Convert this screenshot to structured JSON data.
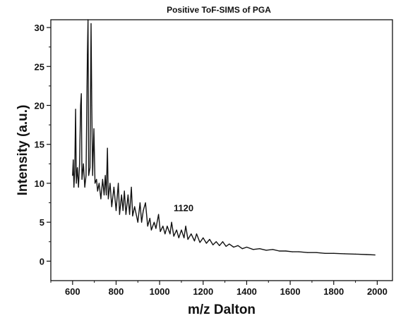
{
  "chart_data": {
    "type": "line",
    "title": "Positive ToF-SIMS of PGA",
    "xlabel": "m/z Dalton",
    "ylabel": "Intensity (a.u.)",
    "xlim": [
      500,
      2070
    ],
    "ylim": [
      -2.5,
      31
    ],
    "xticks": [
      600,
      800,
      1000,
      1200,
      1400,
      1600,
      1800,
      2000
    ],
    "yticks": [
      0,
      5,
      10,
      15,
      20,
      25,
      30
    ],
    "grid": false,
    "series": [
      {
        "points": [
          [
            600,
            11.0
          ],
          [
            603,
            13.0
          ],
          [
            606,
            9.5
          ],
          [
            610,
            11.5
          ],
          [
            614,
            19.5
          ],
          [
            617,
            10.0
          ],
          [
            622,
            12.0
          ],
          [
            627,
            9.5
          ],
          [
            632,
            12.5
          ],
          [
            637,
            20.0
          ],
          [
            640,
            21.5
          ],
          [
            643,
            10.5
          ],
          [
            650,
            12.5
          ],
          [
            656,
            9.5
          ],
          [
            662,
            11.0
          ],
          [
            668,
            26.5
          ],
          [
            671,
            31.0
          ],
          [
            674,
            11.0
          ],
          [
            680,
            12.0
          ],
          [
            685,
            30.5
          ],
          [
            688,
            20.0
          ],
          [
            692,
            11.0
          ],
          [
            698,
            17.0
          ],
          [
            703,
            10.0
          ],
          [
            710,
            10.5
          ],
          [
            715,
            9.0
          ],
          [
            722,
            10.0
          ],
          [
            730,
            8.0
          ],
          [
            738,
            10.5
          ],
          [
            745,
            8.5
          ],
          [
            750,
            11.0
          ],
          [
            755,
            8.5
          ],
          [
            760,
            14.5
          ],
          [
            764,
            8.0
          ],
          [
            772,
            10.0
          ],
          [
            780,
            7.0
          ],
          [
            790,
            9.5
          ],
          [
            800,
            6.5
          ],
          [
            810,
            10.0
          ],
          [
            816,
            6.0
          ],
          [
            825,
            8.5
          ],
          [
            832,
            6.5
          ],
          [
            838,
            9.0
          ],
          [
            845,
            6.0
          ],
          [
            855,
            8.5
          ],
          [
            862,
            6.0
          ],
          [
            870,
            9.5
          ],
          [
            876,
            5.8
          ],
          [
            885,
            7.0
          ],
          [
            900,
            5.0
          ],
          [
            910,
            7.5
          ],
          [
            917,
            5.0
          ],
          [
            925,
            6.5
          ],
          [
            935,
            7.5
          ],
          [
            945,
            4.5
          ],
          [
            955,
            5.5
          ],
          [
            962,
            4.0
          ],
          [
            975,
            5.0
          ],
          [
            983,
            4.2
          ],
          [
            995,
            6.0
          ],
          [
            1003,
            3.8
          ],
          [
            1015,
            4.5
          ],
          [
            1025,
            3.5
          ],
          [
            1035,
            4.5
          ],
          [
            1048,
            3.5
          ],
          [
            1055,
            5.0
          ],
          [
            1065,
            3.2
          ],
          [
            1078,
            4.0
          ],
          [
            1088,
            3.0
          ],
          [
            1100,
            4.0
          ],
          [
            1112,
            3.0
          ],
          [
            1120,
            4.5
          ],
          [
            1130,
            2.8
          ],
          [
            1145,
            3.5
          ],
          [
            1160,
            2.6
          ],
          [
            1170,
            3.5
          ],
          [
            1185,
            2.4
          ],
          [
            1200,
            3.0
          ],
          [
            1215,
            2.3
          ],
          [
            1230,
            2.8
          ],
          [
            1245,
            2.1
          ],
          [
            1260,
            2.5
          ],
          [
            1275,
            2.0
          ],
          [
            1290,
            2.5
          ],
          [
            1305,
            1.9
          ],
          [
            1320,
            2.2
          ],
          [
            1340,
            1.8
          ],
          [
            1360,
            2.0
          ],
          [
            1380,
            1.6
          ],
          [
            1400,
            1.8
          ],
          [
            1430,
            1.5
          ],
          [
            1460,
            1.6
          ],
          [
            1490,
            1.4
          ],
          [
            1520,
            1.5
          ],
          [
            1550,
            1.3
          ],
          [
            1580,
            1.3
          ],
          [
            1610,
            1.2
          ],
          [
            1640,
            1.2
          ],
          [
            1680,
            1.1
          ],
          [
            1720,
            1.1
          ],
          [
            1760,
            1.0
          ],
          [
            1800,
            1.0
          ],
          [
            1850,
            0.95
          ],
          [
            1900,
            0.9
          ],
          [
            1950,
            0.85
          ],
          [
            1990,
            0.8
          ]
        ]
      }
    ],
    "annotations": [
      {
        "text": "1120",
        "x": 1110,
        "y": 6.4
      }
    ]
  }
}
